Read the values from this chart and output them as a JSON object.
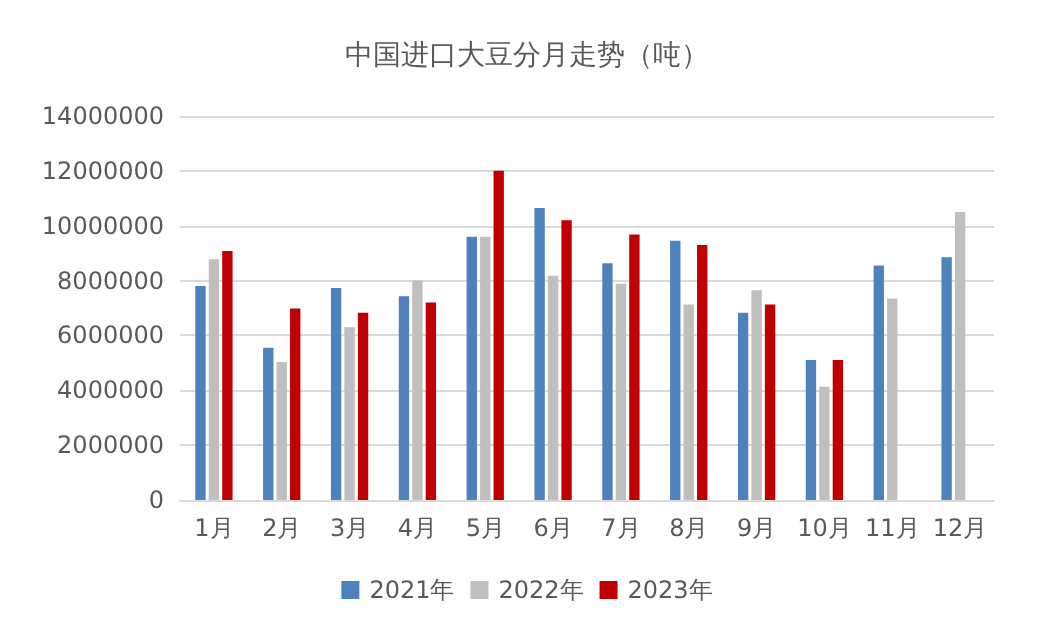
{
  "chart_data": {
    "type": "bar",
    "title": "中国进口大豆分月走势（吨）",
    "categories": [
      "1月",
      "2月",
      "3月",
      "4月",
      "5月",
      "6月",
      "7月",
      "8月",
      "9月",
      "10月",
      "11月",
      "12月"
    ],
    "series": [
      {
        "name": "2021年",
        "color": "#4f81bd",
        "values": [
          7800000,
          5550000,
          7730000,
          7430000,
          9600000,
          10650000,
          8630000,
          9450000,
          6830000,
          5100000,
          8550000,
          8850000
        ]
      },
      {
        "name": "2022年",
        "color": "#bfbfbf",
        "values": [
          8780000,
          5030000,
          6300000,
          8000000,
          9600000,
          8180000,
          7880000,
          7130000,
          7650000,
          4130000,
          7350000,
          10500000
        ]
      },
      {
        "name": "2023年",
        "color": "#c00000",
        "values": [
          9080000,
          6980000,
          6830000,
          7200000,
          12000000,
          10200000,
          9680000,
          9300000,
          7130000,
          5100000,
          null,
          null
        ]
      }
    ],
    "ylim": [
      0,
      14000000
    ],
    "yticks": [
      0,
      2000000,
      4000000,
      6000000,
      8000000,
      10000000,
      12000000,
      14000000
    ],
    "grid": "y",
    "legend": "bottom"
  }
}
